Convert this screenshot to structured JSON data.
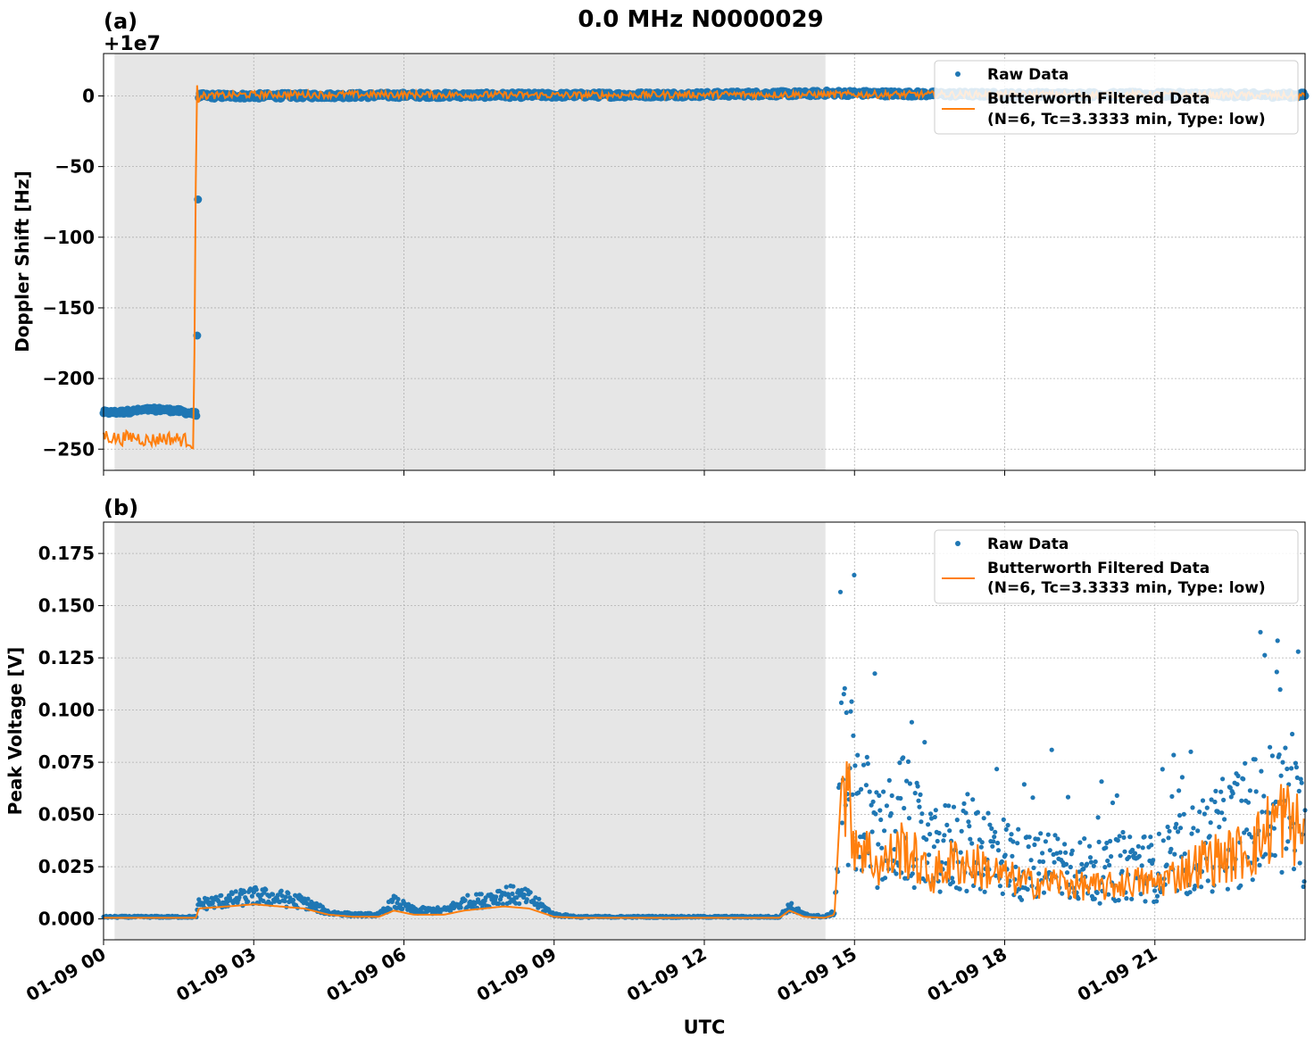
{
  "figure": {
    "title": "0.0 MHz N0000029",
    "xlabel": "UTC"
  },
  "chart_data": [
    {
      "type": "scatter",
      "panel_label": "(a)",
      "ylabel": "Doppler Shift [Hz]",
      "offset_text": "+1e7",
      "ylim": [
        -265,
        30
      ],
      "yticks": [
        0,
        -50,
        -100,
        -150,
        -200,
        -250
      ],
      "ytick_labels": [
        "0",
        "−50",
        "−100",
        "−150",
        "−200",
        "−250"
      ],
      "xlim_hours": [
        0,
        24
      ],
      "xticks_hours": [
        0,
        3,
        6,
        9,
        12,
        15,
        18,
        21
      ],
      "xtick_labels": [
        "01-09 00",
        "01-09 03",
        "01-09 06",
        "01-09 09",
        "01-09 12",
        "01-09 15",
        "01-09 18",
        "01-09 21"
      ],
      "night_shading_hours": [
        0.22,
        14.42
      ],
      "grid": true,
      "legend_position": "top-right",
      "legend": {
        "raw_label": "Raw Data",
        "filtered_label_line1": "Butterworth Filtered Data",
        "filtered_label_line2": "(N=6, Tc=3.3333 min, Type: low)"
      },
      "colors": {
        "raw": "#1f77b4",
        "filtered": "#ff7f0e",
        "shade": "#e6e6e6"
      },
      "series": [
        {
          "name": "Raw Data",
          "x_hours": [
            0,
            0.3,
            0.6,
            0.9,
            1.2,
            1.5,
            1.8,
            1.86,
            1.9,
            3,
            6,
            9,
            12,
            13,
            14,
            14.5,
            16,
            18,
            20,
            22,
            24
          ],
          "values": [
            -224,
            -224,
            -223,
            -222,
            -222,
            -223,
            -225,
            -225,
            0,
            0,
            0.5,
            0.5,
            1,
            1.5,
            1.5,
            2,
            1.5,
            1,
            1,
            1,
            0.5
          ]
        },
        {
          "name": "Butterworth Filtered Data (N=6, Tc=3.3333 min, Type: low)",
          "x_hours": [
            0,
            0.3,
            0.6,
            0.9,
            1.2,
            1.5,
            1.75,
            1.8,
            1.86,
            1.88,
            1.95,
            3,
            6,
            9,
            12,
            14.5,
            18,
            21,
            24
          ],
          "values": [
            -240,
            -243,
            -241,
            -244,
            -242,
            -243,
            -244,
            -251,
            18,
            -6,
            0,
            1,
            1,
            0.5,
            1,
            1,
            1,
            1,
            0
          ]
        }
      ]
    },
    {
      "type": "scatter",
      "panel_label": "(b)",
      "ylabel": "Peak Voltage [V]",
      "ylim": [
        -0.01,
        0.19
      ],
      "yticks": [
        0.0,
        0.025,
        0.05,
        0.075,
        0.1,
        0.125,
        0.15,
        0.175
      ],
      "ytick_labels": [
        "0.000",
        "0.025",
        "0.050",
        "0.075",
        "0.100",
        "0.125",
        "0.150",
        "0.175"
      ],
      "xlim_hours": [
        0,
        24
      ],
      "xticks_hours": [
        0,
        3,
        6,
        9,
        12,
        15,
        18,
        21
      ],
      "xtick_labels": [
        "01-09 00",
        "01-09 03",
        "01-09 06",
        "01-09 09",
        "01-09 12",
        "01-09 15",
        "01-09 18",
        "01-09 21"
      ],
      "night_shading_hours": [
        0.22,
        14.42
      ],
      "grid": true,
      "legend_position": "top-right",
      "legend": {
        "raw_label": "Raw Data",
        "filtered_label_line1": "Butterworth Filtered Data",
        "filtered_label_line2": "(N=6, Tc=3.3333 min, Type: low)"
      },
      "colors": {
        "raw": "#1f77b4",
        "filtered": "#ff7f0e",
        "shade": "#e6e6e6"
      },
      "series": [
        {
          "name": "Raw Data",
          "x_hours": [
            0,
            1.85,
            1.9,
            2.5,
            3,
            3.5,
            4,
            4.5,
            5,
            5.5,
            5.8,
            6.2,
            6.8,
            7.2,
            7.6,
            8,
            8.5,
            9,
            9.5,
            12,
            13,
            13.5,
            13.7,
            14,
            14.4,
            14.6,
            14.75,
            15,
            15.5,
            16,
            16.5,
            17,
            17.5,
            18,
            18.5,
            19,
            19.5,
            20,
            20.5,
            21,
            21.5,
            22,
            22.5,
            23,
            23.5,
            24
          ],
          "values": [
            0.001,
            0.001,
            0.007,
            0.009,
            0.011,
            0.01,
            0.008,
            0.003,
            0.002,
            0.002,
            0.008,
            0.004,
            0.004,
            0.008,
            0.009,
            0.012,
            0.01,
            0.002,
            0.001,
            0.001,
            0.001,
            0.001,
            0.006,
            0.002,
            0.001,
            0.003,
            0.06,
            0.05,
            0.03,
            0.04,
            0.025,
            0.03,
            0.03,
            0.025,
            0.02,
            0.022,
            0.02,
            0.018,
            0.022,
            0.02,
            0.025,
            0.03,
            0.035,
            0.04,
            0.045,
            0.035
          ]
        },
        {
          "name": "Butterworth Filtered Data (N=6, Tc=3.3333 min, Type: low)",
          "x_hours": [
            0,
            1.85,
            1.9,
            2.5,
            3,
            3.5,
            4,
            4.5,
            5,
            5.5,
            5.8,
            6.2,
            6.8,
            7.2,
            7.6,
            8,
            8.5,
            9,
            9.5,
            12,
            13,
            13.5,
            13.7,
            14,
            14.4,
            14.6,
            14.75,
            15,
            15.5,
            16,
            16.5,
            17,
            17.5,
            18,
            18.5,
            19,
            19.5,
            20,
            20.5,
            21,
            21.5,
            22,
            22.5,
            23,
            23.5,
            24
          ],
          "values": [
            0.0005,
            0.0005,
            0.005,
            0.006,
            0.007,
            0.006,
            0.005,
            0.002,
            0.001,
            0.001,
            0.004,
            0.002,
            0.002,
            0.004,
            0.005,
            0.006,
            0.005,
            0.001,
            0.0005,
            0.0005,
            0.0005,
            0.0005,
            0.004,
            0.001,
            0.0005,
            0.002,
            0.07,
            0.04,
            0.025,
            0.035,
            0.02,
            0.028,
            0.025,
            0.02,
            0.017,
            0.018,
            0.016,
            0.015,
            0.018,
            0.017,
            0.022,
            0.028,
            0.03,
            0.035,
            0.05,
            0.04
          ]
        }
      ]
    }
  ]
}
